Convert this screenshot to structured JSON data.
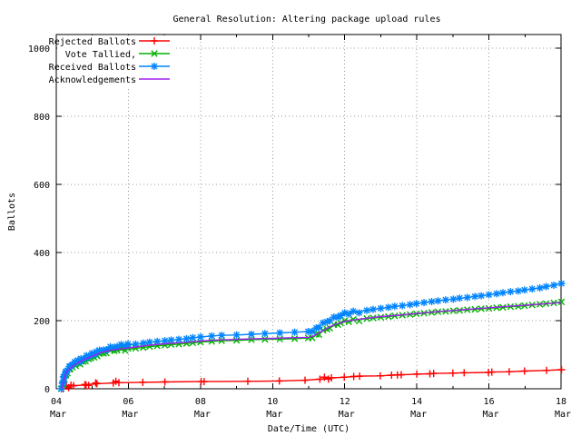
{
  "chart_data": {
    "type": "line",
    "title": "General Resolution: Altering package upload rules",
    "xlabel": "Date/Time (UTC)",
    "ylabel": "Ballots",
    "xlim": [
      4,
      18
    ],
    "ylim": [
      0,
      1040
    ],
    "yticks": [
      0,
      200,
      400,
      600,
      800,
      1000
    ],
    "xticks": [
      {
        "day": 4,
        "label": "04",
        "month": "Mar"
      },
      {
        "day": 6,
        "label": "06",
        "month": "Mar"
      },
      {
        "day": 8,
        "label": "08",
        "month": "Mar"
      },
      {
        "day": 10,
        "label": "10",
        "month": "Mar"
      },
      {
        "day": 12,
        "label": "12",
        "month": "Mar"
      },
      {
        "day": 14,
        "label": "14",
        "month": "Mar"
      },
      {
        "day": 16,
        "label": "16",
        "month": "Mar"
      },
      {
        "day": 18,
        "label": "18",
        "month": "Mar"
      }
    ],
    "grid": true,
    "grid_color": "#9e9e9e",
    "legend_position": "top-left",
    "background": "#ffffff",
    "series": [
      {
        "name": "Rejected Ballots",
        "color": "#ff0000",
        "marker": "plus",
        "points": [
          [
            4.2,
            0
          ],
          [
            4.28,
            4
          ],
          [
            4.33,
            6
          ],
          [
            4.42,
            8
          ],
          [
            4.48,
            9
          ],
          [
            4.78,
            11
          ],
          [
            4.84,
            12
          ],
          [
            4.9,
            13
          ],
          [
            5.08,
            14
          ],
          [
            5.14,
            15
          ],
          [
            5.58,
            17
          ],
          [
            5.64,
            18
          ],
          [
            5.75,
            18
          ],
          [
            6.4,
            19
          ],
          [
            7.0,
            20
          ],
          [
            8.03,
            21
          ],
          [
            8.1,
            21
          ],
          [
            9.3,
            22
          ],
          [
            10.2,
            23
          ],
          [
            10.9,
            25
          ],
          [
            11.3,
            28
          ],
          [
            11.45,
            30
          ],
          [
            11.55,
            31
          ],
          [
            11.62,
            32
          ],
          [
            12.0,
            34
          ],
          [
            12.25,
            36
          ],
          [
            12.4,
            37
          ],
          [
            13.0,
            38
          ],
          [
            13.3,
            40
          ],
          [
            13.45,
            41
          ],
          [
            13.58,
            41
          ],
          [
            14.0,
            43
          ],
          [
            14.35,
            44
          ],
          [
            14.48,
            45
          ],
          [
            15.0,
            46
          ],
          [
            15.3,
            47
          ],
          [
            16.0,
            48
          ],
          [
            16.08,
            49
          ],
          [
            16.55,
            50
          ],
          [
            17.0,
            52
          ],
          [
            17.6,
            54
          ],
          [
            18.0,
            56
          ]
        ]
      },
      {
        "name": "Vote Tallied,",
        "color": "#00b000",
        "marker": "cross",
        "points": [
          [
            4.15,
            0
          ],
          [
            4.17,
            8
          ],
          [
            4.19,
            16
          ],
          [
            4.21,
            25
          ],
          [
            4.23,
            32
          ],
          [
            4.25,
            38
          ],
          [
            4.28,
            44
          ],
          [
            4.31,
            49
          ],
          [
            4.35,
            54
          ],
          [
            4.4,
            59
          ],
          [
            4.45,
            63
          ],
          [
            4.5,
            67
          ],
          [
            4.55,
            70
          ],
          [
            4.6,
            73
          ],
          [
            4.65,
            76
          ],
          [
            4.7,
            79
          ],
          [
            4.75,
            81
          ],
          [
            4.8,
            84
          ],
          [
            4.85,
            86
          ],
          [
            4.9,
            88
          ],
          [
            4.95,
            90
          ],
          [
            5.0,
            92
          ],
          [
            5.05,
            95
          ],
          [
            5.1,
            97
          ],
          [
            5.15,
            100
          ],
          [
            5.2,
            102
          ],
          [
            5.3,
            105
          ],
          [
            5.4,
            108
          ],
          [
            5.5,
            110
          ],
          [
            5.6,
            112
          ],
          [
            5.7,
            113
          ],
          [
            5.8,
            114
          ],
          [
            5.9,
            115
          ],
          [
            6.0,
            116
          ],
          [
            6.2,
            119
          ],
          [
            6.4,
            121
          ],
          [
            6.6,
            124
          ],
          [
            6.8,
            126
          ],
          [
            7.0,
            128
          ],
          [
            7.2,
            130
          ],
          [
            7.4,
            131
          ],
          [
            7.6,
            133
          ],
          [
            7.8,
            135
          ],
          [
            8.0,
            137
          ],
          [
            8.3,
            139
          ],
          [
            8.6,
            141
          ],
          [
            9.0,
            142
          ],
          [
            9.4,
            144
          ],
          [
            9.8,
            145
          ],
          [
            10.2,
            146
          ],
          [
            10.6,
            147
          ],
          [
            11.0,
            149
          ],
          [
            11.1,
            152
          ],
          [
            11.2,
            157
          ],
          [
            11.3,
            163
          ],
          [
            11.4,
            170
          ],
          [
            11.5,
            176
          ],
          [
            11.6,
            181
          ],
          [
            11.7,
            185
          ],
          [
            11.8,
            189
          ],
          [
            11.9,
            193
          ],
          [
            12.0,
            196
          ],
          [
            12.1,
            199
          ],
          [
            12.25,
            201
          ],
          [
            12.4,
            203
          ],
          [
            12.6,
            206
          ],
          [
            12.8,
            208
          ],
          [
            13.0,
            210
          ],
          [
            13.2,
            212
          ],
          [
            13.4,
            214
          ],
          [
            13.6,
            216
          ],
          [
            13.8,
            218
          ],
          [
            14.0,
            220
          ],
          [
            14.2,
            222
          ],
          [
            14.4,
            224
          ],
          [
            14.6,
            226
          ],
          [
            14.8,
            227
          ],
          [
            15.0,
            229
          ],
          [
            15.2,
            230
          ],
          [
            15.4,
            232
          ],
          [
            15.6,
            233
          ],
          [
            15.8,
            235
          ],
          [
            16.0,
            236
          ],
          [
            16.2,
            238
          ],
          [
            16.4,
            239
          ],
          [
            16.6,
            241
          ],
          [
            16.8,
            242
          ],
          [
            17.0,
            244
          ],
          [
            17.2,
            246
          ],
          [
            17.4,
            248
          ],
          [
            17.6,
            250
          ],
          [
            17.8,
            252
          ],
          [
            18.0,
            255
          ]
        ]
      },
      {
        "name": "Received Ballots",
        "color": "#0084ff",
        "marker": "star",
        "points": [
          [
            4.15,
            0
          ],
          [
            4.17,
            12
          ],
          [
            4.19,
            22
          ],
          [
            4.21,
            32
          ],
          [
            4.23,
            40
          ],
          [
            4.25,
            46
          ],
          [
            4.28,
            52
          ],
          [
            4.31,
            57
          ],
          [
            4.35,
            62
          ],
          [
            4.4,
            67
          ],
          [
            4.45,
            71
          ],
          [
            4.5,
            75
          ],
          [
            4.55,
            78
          ],
          [
            4.6,
            81
          ],
          [
            4.65,
            84
          ],
          [
            4.7,
            87
          ],
          [
            4.75,
            89
          ],
          [
            4.8,
            92
          ],
          [
            4.85,
            94
          ],
          [
            4.9,
            96
          ],
          [
            4.95,
            98
          ],
          [
            5.0,
            100
          ],
          [
            5.05,
            103
          ],
          [
            5.1,
            106
          ],
          [
            5.15,
            109
          ],
          [
            5.2,
            112
          ],
          [
            5.3,
            115
          ],
          [
            5.4,
            118
          ],
          [
            5.5,
            120
          ],
          [
            5.6,
            122
          ],
          [
            5.7,
            124
          ],
          [
            5.8,
            126
          ],
          [
            5.9,
            127
          ],
          [
            6.0,
            129
          ],
          [
            6.2,
            131
          ],
          [
            6.4,
            134
          ],
          [
            6.6,
            137
          ],
          [
            6.8,
            139
          ],
          [
            7.0,
            141
          ],
          [
            7.2,
            143
          ],
          [
            7.4,
            145
          ],
          [
            7.6,
            147
          ],
          [
            7.8,
            150
          ],
          [
            8.0,
            152
          ],
          [
            8.3,
            155
          ],
          [
            8.6,
            157
          ],
          [
            9.0,
            158
          ],
          [
            9.4,
            160
          ],
          [
            9.8,
            162
          ],
          [
            10.2,
            164
          ],
          [
            10.6,
            166
          ],
          [
            11.0,
            168
          ],
          [
            11.1,
            171
          ],
          [
            11.2,
            176
          ],
          [
            11.3,
            184
          ],
          [
            11.4,
            192
          ],
          [
            11.5,
            198
          ],
          [
            11.6,
            203
          ],
          [
            11.7,
            207
          ],
          [
            11.8,
            211
          ],
          [
            11.9,
            215
          ],
          [
            12.0,
            219
          ],
          [
            12.1,
            222
          ],
          [
            12.25,
            225
          ],
          [
            12.4,
            227
          ],
          [
            12.6,
            230
          ],
          [
            12.8,
            233
          ],
          [
            13.0,
            236
          ],
          [
            13.2,
            239
          ],
          [
            13.4,
            242
          ],
          [
            13.6,
            244
          ],
          [
            13.8,
            247
          ],
          [
            14.0,
            250
          ],
          [
            14.2,
            253
          ],
          [
            14.4,
            256
          ],
          [
            14.6,
            258
          ],
          [
            14.8,
            261
          ],
          [
            15.0,
            263
          ],
          [
            15.2,
            266
          ],
          [
            15.4,
            268
          ],
          [
            15.6,
            271
          ],
          [
            15.8,
            273
          ],
          [
            16.0,
            276
          ],
          [
            16.2,
            279
          ],
          [
            16.4,
            282
          ],
          [
            16.6,
            285
          ],
          [
            16.8,
            287
          ],
          [
            17.0,
            290
          ],
          [
            17.2,
            293
          ],
          [
            17.4,
            296
          ],
          [
            17.6,
            300
          ],
          [
            17.8,
            304
          ],
          [
            18.0,
            309
          ]
        ]
      },
      {
        "name": "Acknowledgements",
        "color": "#a020f0",
        "marker": "none",
        "points": [
          [
            4.15,
            0
          ],
          [
            4.25,
            42
          ],
          [
            4.31,
            52
          ],
          [
            4.4,
            62
          ],
          [
            4.5,
            70
          ],
          [
            4.65,
            79
          ],
          [
            4.8,
            87
          ],
          [
            5.0,
            96
          ],
          [
            5.2,
            105
          ],
          [
            5.4,
            111
          ],
          [
            5.6,
            115
          ],
          [
            5.8,
            117
          ],
          [
            6.0,
            120
          ],
          [
            6.3,
            124
          ],
          [
            6.6,
            128
          ],
          [
            7.0,
            132
          ],
          [
            7.4,
            135
          ],
          [
            7.8,
            138
          ],
          [
            8.0,
            140
          ],
          [
            8.4,
            143
          ],
          [
            9.0,
            145
          ],
          [
            9.5,
            147
          ],
          [
            10.0,
            148
          ],
          [
            10.5,
            150
          ],
          [
            11.0,
            151
          ],
          [
            11.15,
            156
          ],
          [
            11.3,
            165
          ],
          [
            11.45,
            174
          ],
          [
            11.6,
            183
          ],
          [
            11.8,
            191
          ],
          [
            12.0,
            198
          ],
          [
            12.3,
            203
          ],
          [
            12.6,
            207
          ],
          [
            13.0,
            212
          ],
          [
            13.5,
            216
          ],
          [
            14.0,
            221
          ],
          [
            14.5,
            226
          ],
          [
            15.0,
            230
          ],
          [
            15.5,
            234
          ],
          [
            16.0,
            238
          ],
          [
            16.5,
            242
          ],
          [
            17.0,
            245
          ],
          [
            17.5,
            249
          ],
          [
            18.0,
            253
          ]
        ]
      }
    ]
  }
}
